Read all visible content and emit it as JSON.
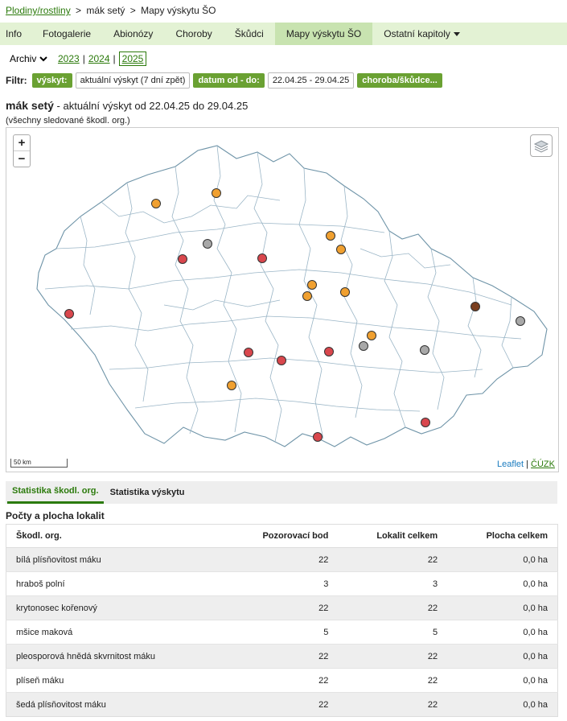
{
  "breadcrumb": {
    "root": "Plodiny/rostliny",
    "crop": "mák setý",
    "current": "Mapy výskytu ŠO"
  },
  "tabs": [
    "Info",
    "Fotogalerie",
    "Abionózy",
    "Choroby",
    "Škůdci",
    "Mapy výskytu ŠO",
    "Ostatní kapitoly"
  ],
  "archive": {
    "label": "Archiv",
    "years": [
      "2023",
      "2024",
      "2025"
    ],
    "selected": "2025"
  },
  "filter": {
    "label": "Filtr:",
    "occurrence_btn": "výskyt:",
    "occurrence_value": "aktuální výskyt (7 dní zpět)",
    "date_btn": "datum od - do:",
    "date_value": "22.04.25 - 29.04.25",
    "pest_btn": "choroba/škůdce..."
  },
  "heading": {
    "crop": "mák setý",
    "rest": " - aktuální výskyt od 22.04.25 do 29.04.25",
    "sub": "(všechny sledované škodl. org.)"
  },
  "map": {
    "zoom_in": "+",
    "zoom_out": "−",
    "scale": "50 km",
    "attrib_leaflet": "Leaflet",
    "attrib_sep": "|",
    "attrib_cuzk": "ČÚZK",
    "marker_colors": {
      "red": "#d9474d",
      "orange": "#f0a030",
      "gray": "#a8a8a8",
      "brown": "#7a3e1e"
    }
  },
  "stats_tabs": [
    "Statistika škodl. org.",
    "Statistika výskytu"
  ],
  "section_title": "Počty a plocha lokalit",
  "table": {
    "headers": [
      "Škodl. org.",
      "Pozorovací bod",
      "Lokalit celkem",
      "Plocha celkem"
    ],
    "rows": [
      [
        "bílá plísňovitost máku",
        "22",
        "22",
        "0,0 ha"
      ],
      [
        "hraboš polní",
        "3",
        "3",
        "0,0 ha"
      ],
      [
        "krytonosec kořenový",
        "22",
        "22",
        "0,0 ha"
      ],
      [
        "mšice maková",
        "5",
        "5",
        "0,0 ha"
      ],
      [
        "pleosporová hnědá skvrnitost máku",
        "22",
        "22",
        "0,0 ha"
      ],
      [
        "plíseň máku",
        "22",
        "22",
        "0,0 ha"
      ],
      [
        "šedá plísňovitost máku",
        "22",
        "22",
        "0,0 ha"
      ]
    ]
  }
}
